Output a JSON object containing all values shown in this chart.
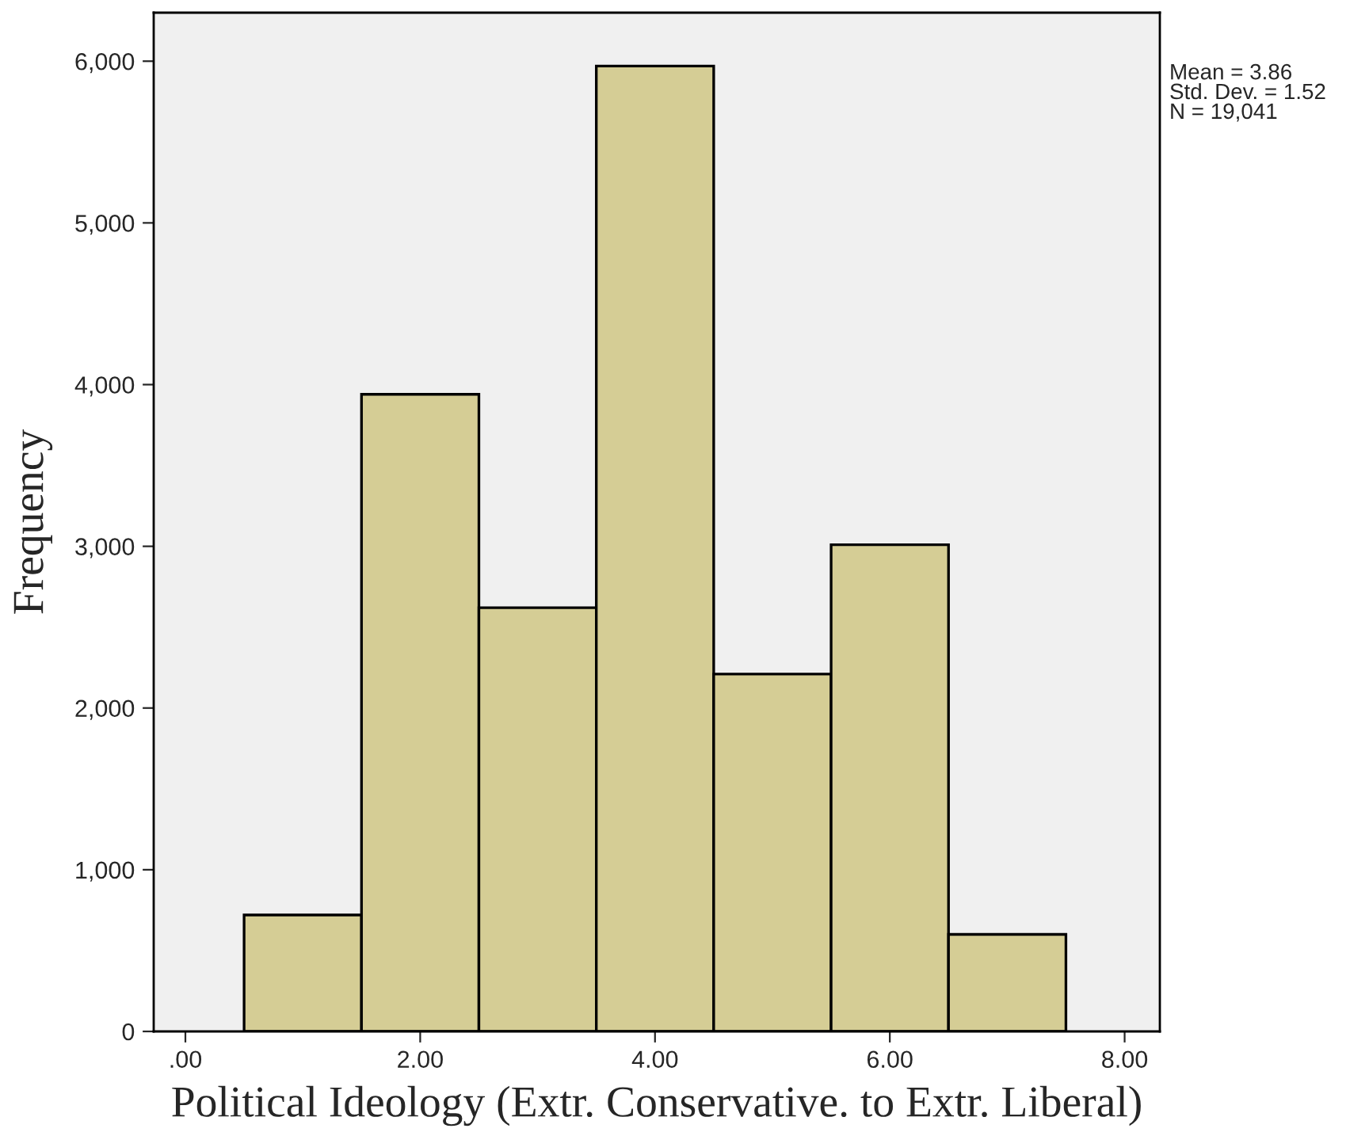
{
  "chart_data": {
    "type": "histogram",
    "xlabel": "Political Ideology (Extr. Conservative. to Extr. Liberal)",
    "ylabel": "Frequency",
    "bins": [
      0.5,
      1.5,
      2.5,
      3.5,
      4.5,
      5.5,
      6.5,
      7.5
    ],
    "values": [
      720,
      3940,
      2620,
      5970,
      2210,
      3010,
      600
    ],
    "color": "#d5cd95",
    "xlim": [
      -0.27,
      8.3
    ],
    "ylim": [
      0,
      6300
    ],
    "xticks": [
      {
        "value": 0,
        "label": ".00"
      },
      {
        "value": 2,
        "label": "2.00"
      },
      {
        "value": 4,
        "label": "4.00"
      },
      {
        "value": 6,
        "label": "6.00"
      },
      {
        "value": 8,
        "label": "8.00"
      }
    ],
    "yticks": [
      0,
      {
        "value": 1000,
        "label": "1,000"
      },
      {
        "value": 2000,
        "label": "2,000"
      },
      {
        "value": 3000,
        "label": "3,000"
      },
      {
        "value": 4000,
        "label": "4,000"
      },
      {
        "value": 5000,
        "label": "5,000"
      },
      {
        "value": 6000,
        "label": "6,000"
      }
    ],
    "grid": false,
    "annotations": [
      "Mean = 3.86\nStd. Dev. = 1.52\nN = 19,041"
    ]
  }
}
